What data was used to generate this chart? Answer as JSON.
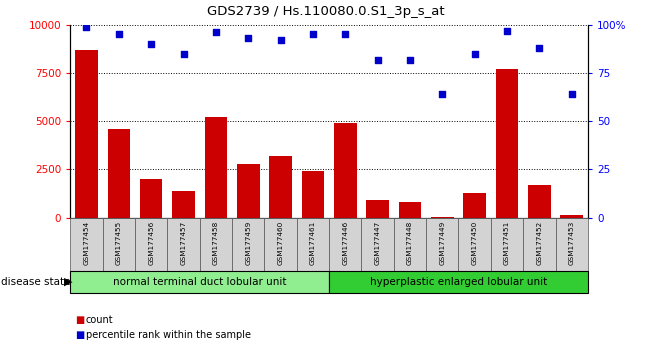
{
  "title": "GDS2739 / Hs.110080.0.S1_3p_s_at",
  "samples": [
    "GSM177454",
    "GSM177455",
    "GSM177456",
    "GSM177457",
    "GSM177458",
    "GSM177459",
    "GSM177460",
    "GSM177461",
    "GSM177446",
    "GSM177447",
    "GSM177448",
    "GSM177449",
    "GSM177450",
    "GSM177451",
    "GSM177452",
    "GSM177453"
  ],
  "counts": [
    8700,
    4600,
    2000,
    1400,
    5200,
    2800,
    3200,
    2400,
    4900,
    900,
    800,
    50,
    1300,
    7700,
    1700,
    150
  ],
  "percentiles": [
    99,
    95,
    90,
    85,
    96,
    93,
    92,
    95,
    95,
    82,
    82,
    64,
    85,
    97,
    88,
    64
  ],
  "group1_label": "normal terminal duct lobular unit",
  "group2_label": "hyperplastic enlarged lobular unit",
  "group1_count": 8,
  "group2_count": 8,
  "bar_color": "#cc0000",
  "dot_color": "#0000cc",
  "group1_color": "#90ee90",
  "group2_color": "#32cd32",
  "ylim_left": [
    0,
    10000
  ],
  "ylim_right": [
    0,
    100
  ],
  "yticks_left": [
    0,
    2500,
    5000,
    7500,
    10000
  ],
  "yticks_right": [
    0,
    25,
    50,
    75,
    100
  ],
  "ylabel_right_ticks": [
    "0",
    "25",
    "50",
    "75",
    "100%"
  ],
  "tick_bg_color": "#d3d3d3",
  "bg_color": "#ffffff"
}
